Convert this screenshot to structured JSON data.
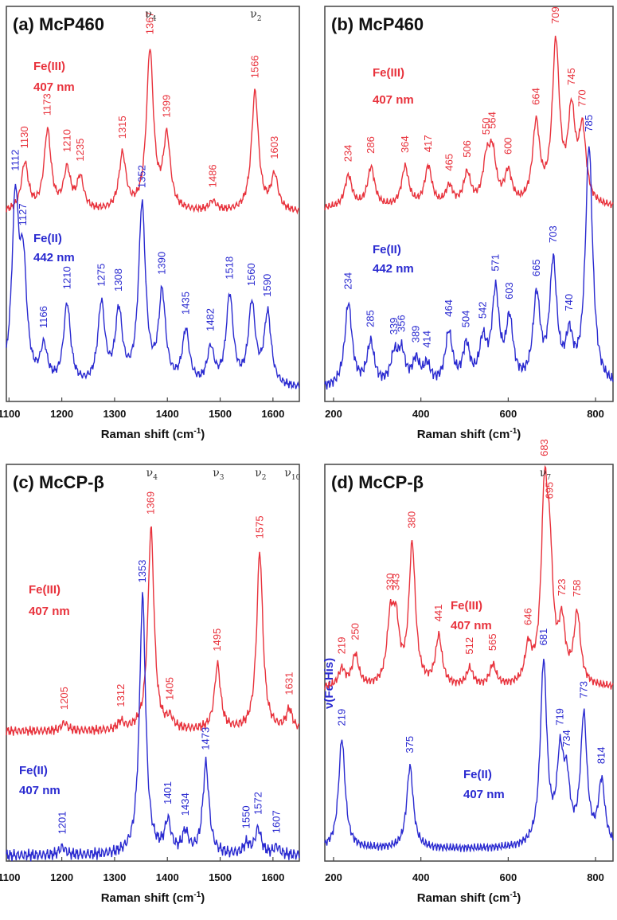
{
  "chart_data": [
    {
      "type": "line",
      "panel": "a",
      "title": "(a) McP460",
      "xlabel": "Raman shift (cm-1)",
      "xlim": [
        1095,
        1650
      ],
      "xticks": [
        1100,
        1200,
        1300,
        1400,
        1500,
        1600
      ],
      "mode_labels": [
        {
          "text": "ν",
          "sub": "4",
          "x": 1367
        },
        {
          "text": "ν",
          "sub": "2",
          "x": 1566
        }
      ],
      "series": [
        {
          "name": "Fe(III)",
          "wavelength": "407 nm",
          "color": "#e8323c",
          "peaks": [
            [
              1130,
              0.3
            ],
            [
              1173,
              0.5
            ],
            [
              1210,
              0.25
            ],
            [
              1235,
              0.2
            ],
            [
              1315,
              0.35
            ],
            [
              1367,
              1.0
            ],
            [
              1399,
              0.45
            ],
            [
              1486,
              0.06
            ],
            [
              1566,
              0.75
            ],
            [
              1603,
              0.22
            ]
          ]
        },
        {
          "name": "Fe(II)",
          "wavelength": "442 nm",
          "color": "#2a2ad0",
          "peaks": [
            [
              1112,
              1.0
            ],
            [
              1127,
              0.6
            ],
            [
              1166,
              0.2
            ],
            [
              1210,
              0.45
            ],
            [
              1275,
              0.45
            ],
            [
              1308,
              0.4
            ],
            [
              1352,
              1.0
            ],
            [
              1390,
              0.5
            ],
            [
              1435,
              0.3
            ],
            [
              1482,
              0.2
            ],
            [
              1518,
              0.5
            ],
            [
              1560,
              0.45
            ],
            [
              1590,
              0.4
            ]
          ]
        }
      ]
    },
    {
      "type": "line",
      "panel": "b",
      "title": "(b) McP460",
      "xlabel": "Raman shift (cm-1)",
      "xlim": [
        180,
        840
      ],
      "xticks": [
        200,
        400,
        600,
        800
      ],
      "mode_labels": [],
      "series": [
        {
          "name": "Fe(III)",
          "wavelength": "407 nm",
          "color": "#e8323c",
          "peaks": [
            [
              234,
              0.2
            ],
            [
              286,
              0.25
            ],
            [
              364,
              0.25
            ],
            [
              417,
              0.25
            ],
            [
              465,
              0.12
            ],
            [
              506,
              0.2
            ],
            [
              550,
              0.25
            ],
            [
              564,
              0.3
            ],
            [
              600,
              0.2
            ],
            [
              664,
              0.5
            ],
            [
              709,
              1.0
            ],
            [
              745,
              0.55
            ],
            [
              770,
              0.45
            ]
          ]
        },
        {
          "name": "Fe(II)",
          "wavelength": "442 nm",
          "color": "#2a2ad0",
          "peaks": [
            [
              234,
              0.35
            ],
            [
              285,
              0.18
            ],
            [
              339,
              0.12
            ],
            [
              356,
              0.13
            ],
            [
              389,
              0.1
            ],
            [
              414,
              0.08
            ],
            [
              464,
              0.22
            ],
            [
              504,
              0.16
            ],
            [
              542,
              0.17
            ],
            [
              571,
              0.38
            ],
            [
              603,
              0.26
            ],
            [
              665,
              0.36
            ],
            [
              703,
              0.5
            ],
            [
              740,
              0.18
            ],
            [
              785,
              1.0
            ]
          ]
        }
      ]
    },
    {
      "type": "line",
      "panel": "c",
      "title": "(c) McCP-β",
      "xlabel": "Raman shift (cm-1)",
      "xlim": [
        1095,
        1650
      ],
      "xticks": [
        1100,
        1200,
        1300,
        1400,
        1500,
        1600
      ],
      "mode_labels": [
        {
          "text": "ν",
          "sub": "4",
          "x": 1369
        },
        {
          "text": "ν",
          "sub": "2",
          "x": 1575
        },
        {
          "text": "ν",
          "sub": "3",
          "x": 1495
        },
        {
          "text": "ν",
          "sub": "10",
          "x": 1631
        }
      ],
      "series": [
        {
          "name": "Fe(III)",
          "wavelength": "407 nm",
          "color": "#e8323c",
          "peaks": [
            [
              1205,
              0.04
            ],
            [
              1312,
              0.04
            ],
            [
              1369,
              1.0
            ],
            [
              1405,
              0.05
            ],
            [
              1495,
              0.32
            ],
            [
              1575,
              0.88
            ],
            [
              1631,
              0.1
            ]
          ]
        },
        {
          "name": "Fe(II)",
          "wavelength": "407 nm",
          "color": "#2a2ad0",
          "peaks": [
            [
              1201,
              0.03
            ],
            [
              1353,
              1.0
            ],
            [
              1401,
              0.12
            ],
            [
              1434,
              0.08
            ],
            [
              1473,
              0.35
            ],
            [
              1550,
              0.04
            ],
            [
              1572,
              0.1
            ],
            [
              1607,
              0.03
            ]
          ]
        }
      ]
    },
    {
      "type": "line",
      "panel": "d",
      "title": "(d) McCP-β",
      "xlabel": "Raman shift (cm-1)",
      "xlim": [
        180,
        840
      ],
      "xticks": [
        200,
        400,
        600,
        800
      ],
      "mode_labels": [
        {
          "text": "ν",
          "sub": "7",
          "x": 683
        }
      ],
      "annotations": [
        "ν(Fe-His)"
      ],
      "series": [
        {
          "name": "Fe(III)",
          "wavelength": "407 nm",
          "color": "#e8323c",
          "peaks": [
            [
              219,
              0.1
            ],
            [
              250,
              0.18
            ],
            [
              330,
              0.35
            ],
            [
              343,
              0.32
            ],
            [
              380,
              0.8
            ],
            [
              441,
              0.28
            ],
            [
              512,
              0.1
            ],
            [
              565,
              0.12
            ],
            [
              646,
              0.2
            ],
            [
              683,
              1.0
            ],
            [
              695,
              0.6
            ],
            [
              723,
              0.32
            ],
            [
              758,
              0.4
            ]
          ]
        },
        {
          "name": "Fe(II)",
          "wavelength": "407 nm",
          "color": "#2a2ad0",
          "peaks": [
            [
              219,
              0.6
            ],
            [
              375,
              0.45
            ],
            [
              681,
              1.0
            ],
            [
              719,
              0.45
            ],
            [
              734,
              0.3
            ],
            [
              773,
              0.7
            ],
            [
              814,
              0.35
            ]
          ]
        }
      ]
    }
  ]
}
